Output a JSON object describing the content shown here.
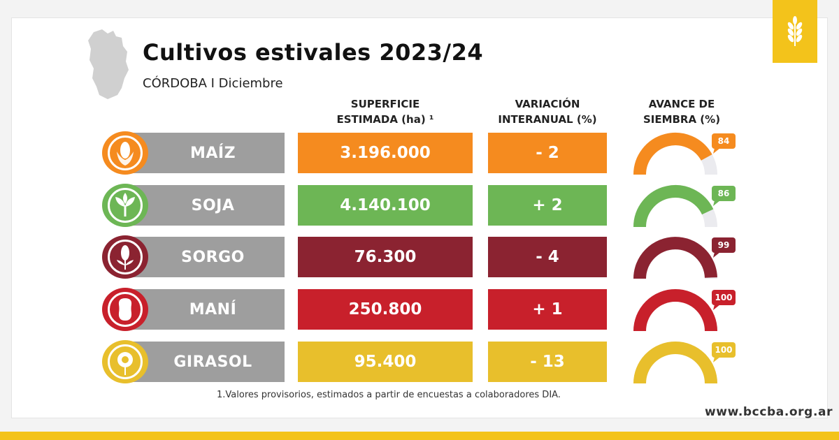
{
  "title": "Cultivos estivales 2023/24",
  "subtitle": "CÓRDOBA I Diciembre",
  "footnote": "1.Valores provisorios, estimados a partir de encuestas a colaboradores DIA.",
  "website": "www.bccba.org.ar",
  "colors": {
    "brand_yellow": "#f3c31b",
    "label_gray": "#9e9e9e",
    "gauge_track": "#ebebef"
  },
  "chart_data": {
    "type": "table",
    "columns": {
      "area_line1": "SUPERFICIE",
      "area_line2": "ESTIMADA (ha) ¹",
      "var_line1": "VARIACIÓN",
      "var_line2": "INTERANUAL (%)",
      "progress_line1": "AVANCE DE",
      "progress_line2": "SIEMBRA (%)"
    },
    "rows": [
      {
        "crop": "MAÍZ",
        "icon": "corn-icon",
        "area": "3.196.000",
        "variation": "- 2",
        "progress": 84,
        "progress_label": "84",
        "color": "#f58b1f"
      },
      {
        "crop": "SOJA",
        "icon": "soy-plant-icon",
        "area": "4.140.100",
        "variation": "+ 2",
        "progress": 86,
        "progress_label": "86",
        "color": "#6db655"
      },
      {
        "crop": "SORGO",
        "icon": "sorghum-icon",
        "area": "76.300",
        "variation": "- 4",
        "progress": 99,
        "progress_label": "99",
        "color": "#8b2331"
      },
      {
        "crop": "MANÍ",
        "icon": "peanut-icon",
        "area": "250.800",
        "variation": "+ 1",
        "progress": 100,
        "progress_label": "100",
        "color": "#c8202b"
      },
      {
        "crop": "GIRASOL",
        "icon": "sunflower-icon",
        "area": "95.400",
        "variation": "- 13",
        "progress": 100,
        "progress_label": "100",
        "color": "#e8bf2c"
      }
    ]
  }
}
